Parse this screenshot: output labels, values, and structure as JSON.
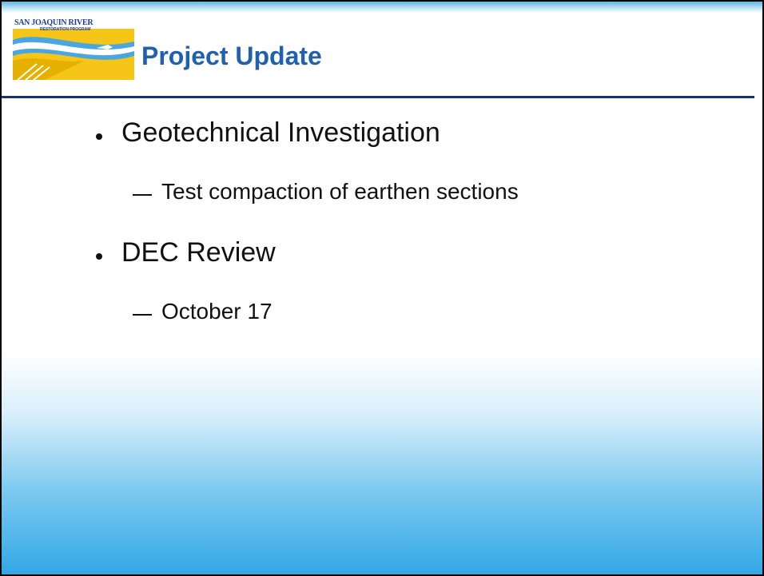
{
  "logo": {
    "line1": "SAN JOAQUIN RIVER",
    "line2": "RESTORATION PROGRAM"
  },
  "title": "Project Update",
  "bullets": [
    {
      "text": "Geotechnical Investigation",
      "sub": [
        "Test compaction of earthen sections"
      ]
    },
    {
      "text": "DEC Review",
      "sub": [
        "October 17"
      ]
    }
  ]
}
